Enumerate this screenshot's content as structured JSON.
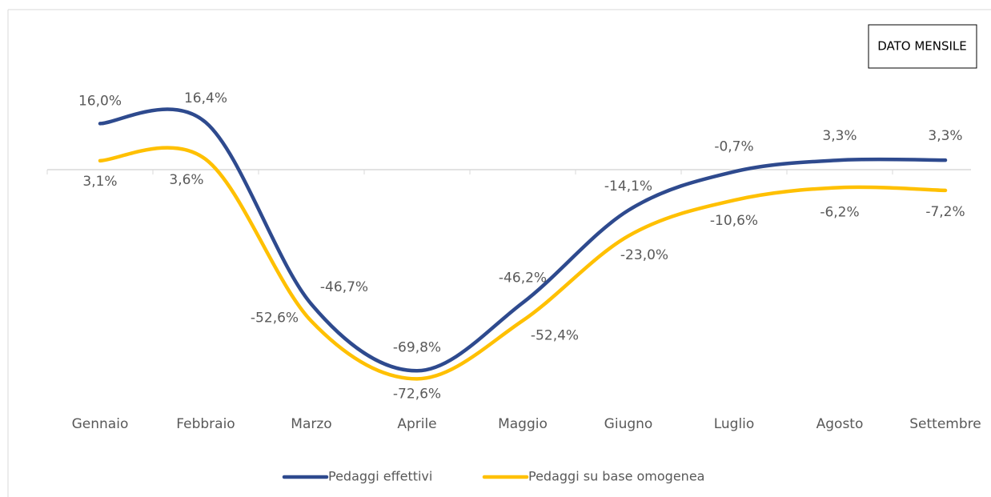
{
  "chart_data": {
    "type": "line",
    "annotation": "DATO MENSILE",
    "categories": [
      "Gennaio",
      "Febbraio",
      "Marzo",
      "Aprile",
      "Maggio",
      "Giugno",
      "Luglio",
      "Agosto",
      "Settembre"
    ],
    "series": [
      {
        "name": "Pedaggi effettivi",
        "color": "#2e4a8e",
        "values": [
          16.0,
          16.4,
          -46.7,
          -69.8,
          -46.2,
          -14.1,
          -0.7,
          3.3,
          3.3
        ],
        "value_labels": [
          "16,0%",
          "16,4%",
          "-46,7%",
          "-69,8%",
          "-46,2%",
          "-14,1%",
          "-0,7%",
          "3,3%",
          "3,3%"
        ]
      },
      {
        "name": "Pedaggi su base omogenea",
        "color": "#ffc000",
        "values": [
          3.1,
          3.6,
          -52.6,
          -72.6,
          -52.4,
          -23.0,
          -10.6,
          -6.2,
          -7.2
        ],
        "value_labels": [
          "3,1%",
          "3,6%",
          "-52,6%",
          "-72,6%",
          "-52,4%",
          "-23,0%",
          "-10,6%",
          "-6,2%",
          "-7,2%"
        ]
      }
    ],
    "ylim": [
      -80,
      20
    ],
    "legend": "bottom"
  }
}
